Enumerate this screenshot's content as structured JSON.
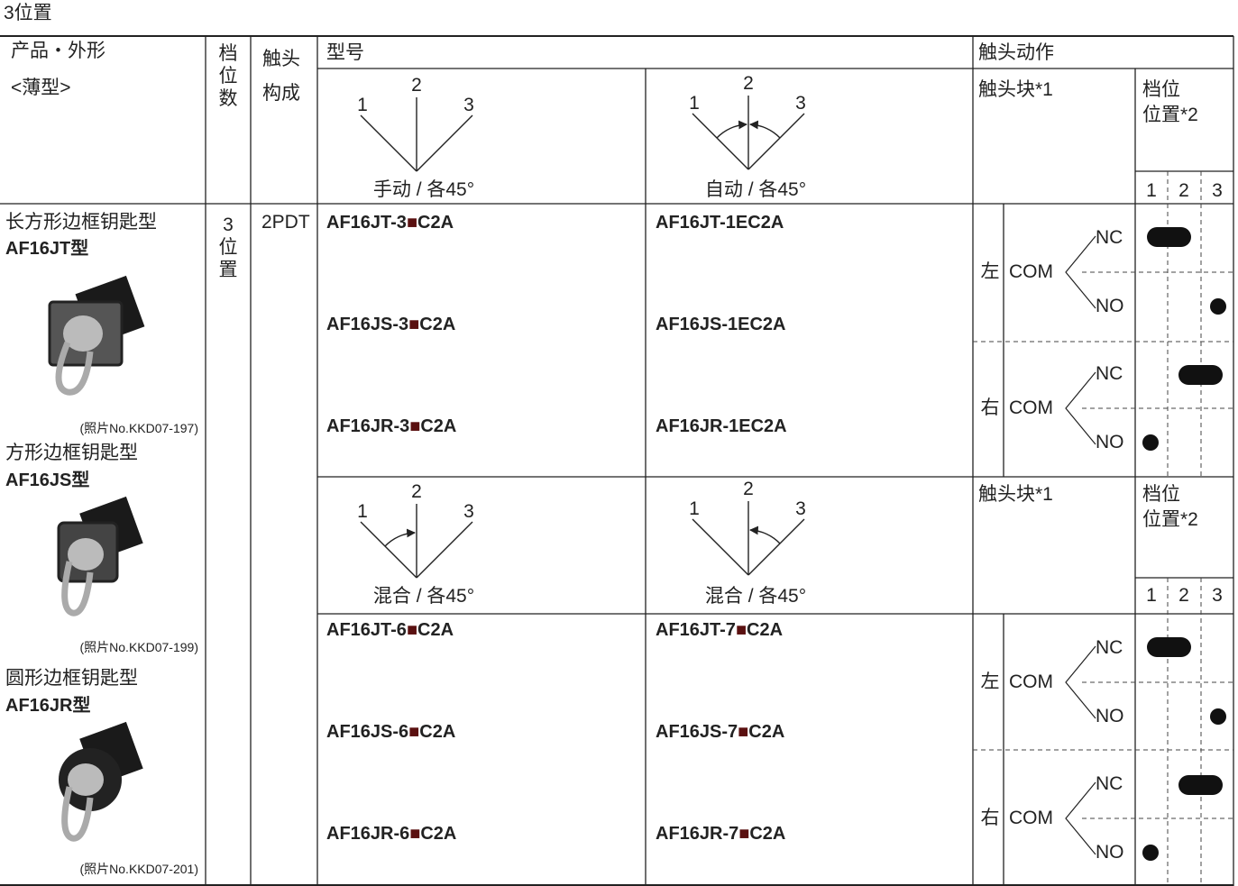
{
  "title": "3位置",
  "header": {
    "product": "产品・外形",
    "product_note": "<薄型>",
    "positions": "档位数",
    "contacts": "触头构成",
    "model": "型号",
    "action": "触头动作"
  },
  "diagrams": [
    {
      "labels": [
        "1",
        "2",
        "3"
      ],
      "caption": "手动 / 各45°"
    },
    {
      "labels": [
        "1",
        "2",
        "3"
      ],
      "caption": "自动 / 各45°"
    },
    {
      "labels": [
        "1",
        "2",
        "3"
      ],
      "caption": "混合 / 各45°"
    },
    {
      "labels": [
        "1",
        "2",
        "3"
      ],
      "caption": "混合 / 各45°"
    }
  ],
  "contact_headers": [
    {
      "block": "触头块*1",
      "position_title": [
        "档位",
        "位置*2"
      ],
      "position_numbers": [
        "1",
        "2",
        "3"
      ]
    },
    {
      "block": "触头块*1",
      "position_title": [
        "档位",
        "位置*2"
      ],
      "position_numbers": [
        "1",
        "2",
        "3"
      ]
    }
  ],
  "products": [
    {
      "name": "长方形边框钥匙型",
      "model": "AF16JT型",
      "photo": "(照片No.KKD07-197)"
    },
    {
      "name": "方形边框钥匙型",
      "model": "AF16JS型",
      "photo": "(照片No.KKD07-199)"
    },
    {
      "name": "圆形边框钥匙型",
      "model": "AF16JR型",
      "photo": "(照片No.KKD07-201)"
    }
  ],
  "position_count": "3位置",
  "contact_config": "2PDT",
  "model_groups": [
    [
      [
        "AF16JT-3■C2A",
        "AF16JT-1EC2A"
      ],
      [
        "AF16JS-3■C2A",
        "AF16JS-1EC2A"
      ],
      [
        "AF16JR-3■C2A",
        "AF16JR-1EC2A"
      ]
    ],
    [
      [
        "AF16JT-6■C2A",
        "AF16JT-7■C2A"
      ],
      [
        "AF16JS-6■C2A",
        "AF16JS-7■C2A"
      ],
      [
        "AF16JR-6■C2A",
        "AF16JR-7■C2A"
      ]
    ]
  ],
  "contact_rows": [
    {
      "side": "左",
      "com": "COM",
      "nc": "NC",
      "no": "NO"
    },
    {
      "side": "右",
      "com": "COM",
      "nc": "NC",
      "no": "NO"
    },
    {
      "side": "左",
      "com": "COM",
      "nc": "NC",
      "no": "NO"
    },
    {
      "side": "右",
      "com": "COM",
      "nc": "NC",
      "no": "NO"
    }
  ]
}
